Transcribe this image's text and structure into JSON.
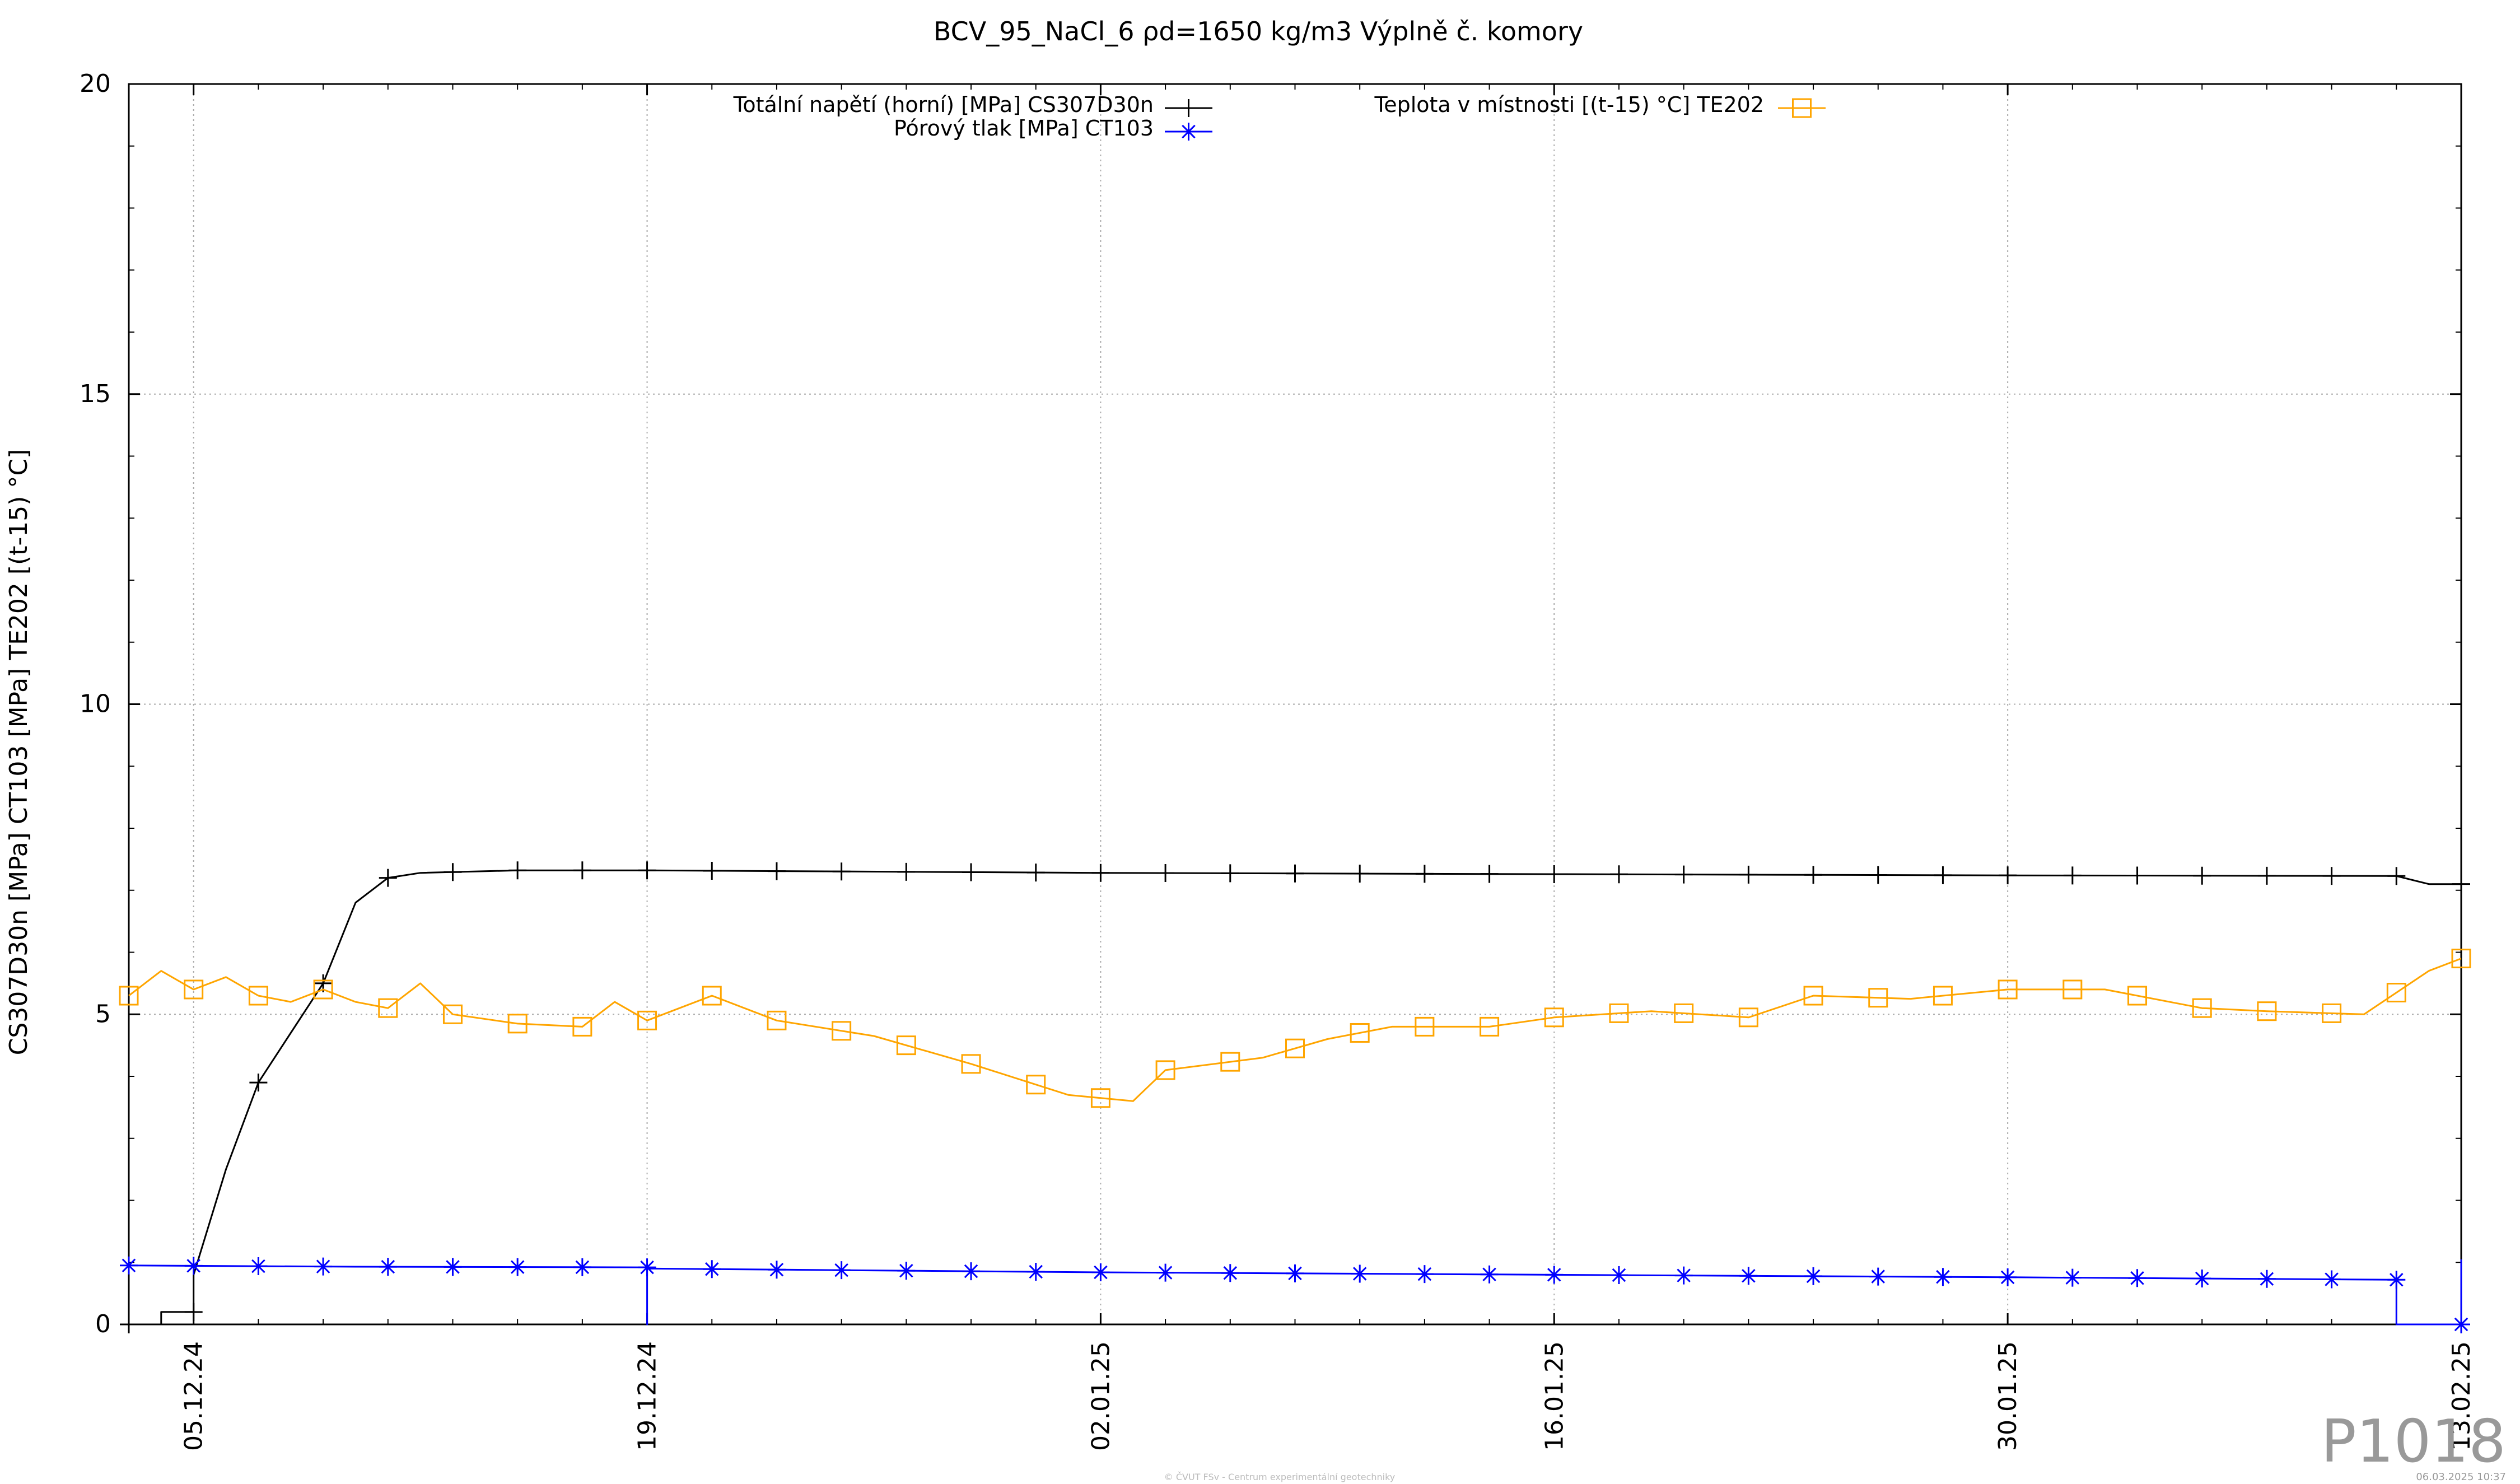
{
  "chart_data": {
    "type": "line",
    "title": "BCV_95_NaCl_6 ρd=1650 kg/m3 Výplně č. komory",
    "ylabel": "CS307D30n [MPa] CT103 [MPa] TE202 [(t-15) °C]",
    "xlabel": "",
    "ylim": [
      0,
      20
    ],
    "xlim": [
      "2024-12-03",
      "2025-02-13"
    ],
    "yticks": [
      0,
      5,
      10,
      15,
      20
    ],
    "xticks": [
      {
        "date": "2024-12-05",
        "label": "05.12.24"
      },
      {
        "date": "2024-12-19",
        "label": "19.12.24"
      },
      {
        "date": "2025-01-02",
        "label": "02.01.25"
      },
      {
        "date": "2025-01-16",
        "label": "16.01.25"
      },
      {
        "date": "2025-01-30",
        "label": "30.01.25"
      },
      {
        "date": "2025-02-13",
        "label": "13.02.25"
      }
    ],
    "grid": true,
    "legend": "top",
    "series": [
      {
        "name": "Totální napětí (horní) [MPa] CS307D30n",
        "color": "#000000",
        "marker": "plus",
        "points": [
          [
            "2024-12-03",
            0.0
          ],
          [
            "2024-12-04",
            0.0
          ],
          [
            "2024-12-04",
            0.2
          ],
          [
            "2024-12-05",
            0.2
          ],
          [
            "2024-12-05",
            0.8
          ],
          [
            "2024-12-06",
            2.5
          ],
          [
            "2024-12-07",
            3.9
          ],
          [
            "2024-12-08",
            4.7
          ],
          [
            "2024-12-09",
            5.5
          ],
          [
            "2024-12-10",
            6.8
          ],
          [
            "2024-12-11",
            7.2
          ],
          [
            "2024-12-12",
            7.28
          ],
          [
            "2024-12-15",
            7.32
          ],
          [
            "2024-12-19",
            7.32
          ],
          [
            "2025-01-02",
            7.28
          ],
          [
            "2025-01-16",
            7.26
          ],
          [
            "2025-01-30",
            7.24
          ],
          [
            "2025-02-11",
            7.23
          ],
          [
            "2025-02-12",
            7.1
          ],
          [
            "2025-02-13",
            7.1
          ],
          [
            "2025-02-13",
            0.0
          ]
        ]
      },
      {
        "name": "Pórový tlak [MPa] CT103",
        "color": "#0000ff",
        "marker": "star",
        "points": [
          [
            "2024-12-03",
            0.95
          ],
          [
            "2024-12-10",
            0.93
          ],
          [
            "2024-12-19",
            0.92
          ],
          [
            "2024-12-19",
            0.0
          ],
          [
            "2024-12-19",
            0.9
          ],
          [
            "2025-01-02",
            0.84
          ],
          [
            "2025-01-16",
            0.8
          ],
          [
            "2025-01-30",
            0.76
          ],
          [
            "2025-02-11",
            0.72
          ],
          [
            "2025-02-11",
            0.0
          ],
          [
            "2025-02-13",
            0.0
          ],
          [
            "2025-02-13",
            1.05
          ]
        ]
      },
      {
        "name": "Teplota v místnosti [(t-15) °C] TE202",
        "color": "#ffa500",
        "marker": "square",
        "points": [
          [
            "2024-12-03",
            5.3
          ],
          [
            "2024-12-04",
            5.7
          ],
          [
            "2024-12-05",
            5.4
          ],
          [
            "2024-12-06",
            5.6
          ],
          [
            "2024-12-07",
            5.3
          ],
          [
            "2024-12-08",
            5.2
          ],
          [
            "2024-12-09",
            5.4
          ],
          [
            "2024-12-10",
            5.2
          ],
          [
            "2024-12-11",
            5.1
          ],
          [
            "2024-12-12",
            5.5
          ],
          [
            "2024-12-13",
            5.0
          ],
          [
            "2024-12-15",
            4.85
          ],
          [
            "2024-12-17",
            4.8
          ],
          [
            "2024-12-18",
            5.2
          ],
          [
            "2024-12-19",
            4.9
          ],
          [
            "2024-12-20",
            5.1
          ],
          [
            "2024-12-21",
            5.3
          ],
          [
            "2024-12-23",
            4.9
          ],
          [
            "2024-12-26",
            4.65
          ],
          [
            "2024-12-29",
            4.2
          ],
          [
            "2025-01-01",
            3.7
          ],
          [
            "2025-01-02",
            3.65
          ],
          [
            "2025-01-03",
            3.6
          ],
          [
            "2025-01-04",
            4.1
          ],
          [
            "2025-01-07",
            4.3
          ],
          [
            "2025-01-09",
            4.6
          ],
          [
            "2025-01-11",
            4.8
          ],
          [
            "2025-01-14",
            4.8
          ],
          [
            "2025-01-16",
            4.95
          ],
          [
            "2025-01-19",
            5.05
          ],
          [
            "2025-01-22",
            4.95
          ],
          [
            "2025-01-24",
            5.3
          ],
          [
            "2025-01-27",
            5.25
          ],
          [
            "2025-01-30",
            5.4
          ],
          [
            "2025-02-02",
            5.4
          ],
          [
            "2025-02-05",
            5.1
          ],
          [
            "2025-02-07",
            5.05
          ],
          [
            "2025-02-10",
            5.0
          ],
          [
            "2025-02-12",
            5.7
          ],
          [
            "2025-02-13",
            5.9
          ]
        ]
      }
    ]
  },
  "watermark": "P1018",
  "footer_center": "© ČVUT FSv - Centrum experimentální geotechniky",
  "footer_right": "06.03.2025 10:37"
}
